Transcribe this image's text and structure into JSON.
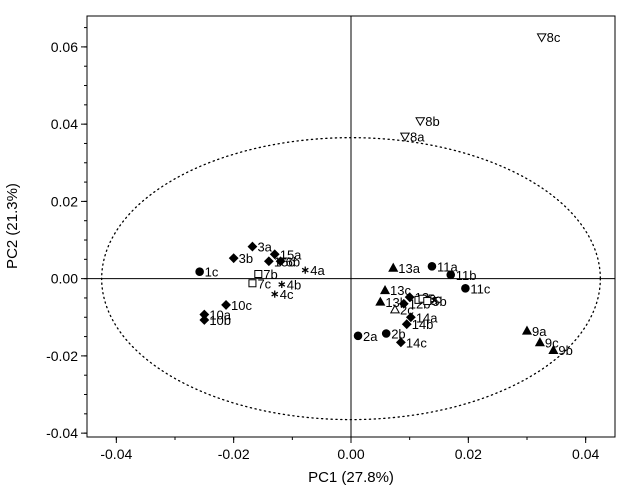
{
  "chart_data": {
    "type": "scatter",
    "xlabel": "PC1 (27.8%)",
    "ylabel": "PC2 (21.3%)",
    "xlim": [
      -0.045,
      0.045
    ],
    "ylim": [
      -0.041,
      0.068
    ],
    "x_ticks": [
      -0.04,
      -0.02,
      0.0,
      0.02,
      0.04
    ],
    "x_tick_labels": [
      "-0.04",
      "-0.02",
      "0.00",
      "0.02",
      "0.04"
    ],
    "y_ticks": [
      -0.04,
      -0.02,
      0.0,
      0.02,
      0.04,
      0.06
    ],
    "y_tick_labels": [
      "-0.04",
      "-0.02",
      "0.00",
      "0.02",
      "0.04",
      "0.06"
    ],
    "grid": false,
    "reference_lines": {
      "x": 0,
      "y": 0
    },
    "confidence_ellipse": {
      "center": [
        0,
        0
      ],
      "semi_axis_x": 0.0425,
      "semi_axis_y": 0.0365,
      "style": "dotted"
    },
    "points": [
      {
        "label": "1c",
        "x": -0.0258,
        "y": 0.0018,
        "marker": "circle"
      },
      {
        "label": "10a",
        "x": -0.025,
        "y": -0.0093,
        "marker": "diamond"
      },
      {
        "label": "10b",
        "x": -0.025,
        "y": -0.0107,
        "marker": "diamond"
      },
      {
        "label": "10c",
        "x": -0.0213,
        "y": -0.0068,
        "marker": "diamond"
      },
      {
        "label": "3b",
        "x": -0.02,
        "y": 0.0053,
        "marker": "diamond"
      },
      {
        "label": "3a",
        "x": -0.0168,
        "y": 0.0083,
        "marker": "diamond"
      },
      {
        "label": "15a",
        "x": -0.013,
        "y": 0.0063,
        "marker": "diamond"
      },
      {
        "label": "15c",
        "x": -0.014,
        "y": 0.0045,
        "marker": "diamond"
      },
      {
        "label": "6b",
        "x": -0.012,
        "y": 0.0045,
        "marker": "diamond"
      },
      {
        "label": "7b",
        "x": -0.0158,
        "y": 0.0012,
        "marker": "square-open"
      },
      {
        "label": "7c",
        "x": -0.0168,
        "y": -0.0012,
        "marker": "square-open"
      },
      {
        "label": "4a",
        "x": -0.0078,
        "y": 0.0022,
        "marker": "asterisk"
      },
      {
        "label": "4b",
        "x": -0.0118,
        "y": -0.0015,
        "marker": "asterisk"
      },
      {
        "label": "4c",
        "x": -0.013,
        "y": -0.004,
        "marker": "asterisk"
      },
      {
        "label": "13a",
        "x": 0.0072,
        "y": 0.0028,
        "marker": "triangle"
      },
      {
        "label": "13c",
        "x": 0.0058,
        "y": -0.003,
        "marker": "triangle"
      },
      {
        "label": "13b",
        "x": 0.005,
        "y": -0.006,
        "marker": "triangle"
      },
      {
        "label": "12a",
        "x": 0.01,
        "y": -0.0048,
        "marker": "diamond"
      },
      {
        "label": "12b",
        "x": 0.009,
        "y": -0.0065,
        "marker": "diamond"
      },
      {
        "label": "5a",
        "x": 0.0115,
        "y": -0.0055,
        "marker": "square-open"
      },
      {
        "label": "5c",
        "x": 0.0122,
        "y": -0.0052,
        "marker": "square-open"
      },
      {
        "label": "5b",
        "x": 0.013,
        "y": -0.0058,
        "marker": "square-open"
      },
      {
        "label": "2a",
        "x": 0.0012,
        "y": -0.0148,
        "marker": "circle"
      },
      {
        "label": "2b",
        "x": 0.006,
        "y": -0.0142,
        "marker": "circle"
      },
      {
        "label": "2c",
        "x": 0.0075,
        "y": -0.008,
        "marker": "triangle-open"
      },
      {
        "label": "14a",
        "x": 0.0102,
        "y": -0.01,
        "marker": "diamond"
      },
      {
        "label": "14b",
        "x": 0.0095,
        "y": -0.0118,
        "marker": "diamond"
      },
      {
        "label": "14c",
        "x": 0.0085,
        "y": -0.0165,
        "marker": "diamond"
      },
      {
        "label": "11a",
        "x": 0.0138,
        "y": 0.0032,
        "marker": "circle"
      },
      {
        "label": "11b",
        "x": 0.017,
        "y": 0.001,
        "marker": "circle"
      },
      {
        "label": "11c",
        "x": 0.0195,
        "y": -0.0025,
        "marker": "circle"
      },
      {
        "label": "9a",
        "x": 0.03,
        "y": -0.0135,
        "marker": "triangle"
      },
      {
        "label": "9c",
        "x": 0.0322,
        "y": -0.0165,
        "marker": "triangle"
      },
      {
        "label": "9b",
        "x": 0.0345,
        "y": -0.0185,
        "marker": "triangle"
      },
      {
        "label": "8a",
        "x": 0.0092,
        "y": 0.0368,
        "marker": "triangle-down-open"
      },
      {
        "label": "8b",
        "x": 0.0118,
        "y": 0.0408,
        "marker": "triangle-down-open"
      },
      {
        "label": "8c",
        "x": 0.0325,
        "y": 0.0625,
        "marker": "triangle-down-open"
      }
    ]
  }
}
